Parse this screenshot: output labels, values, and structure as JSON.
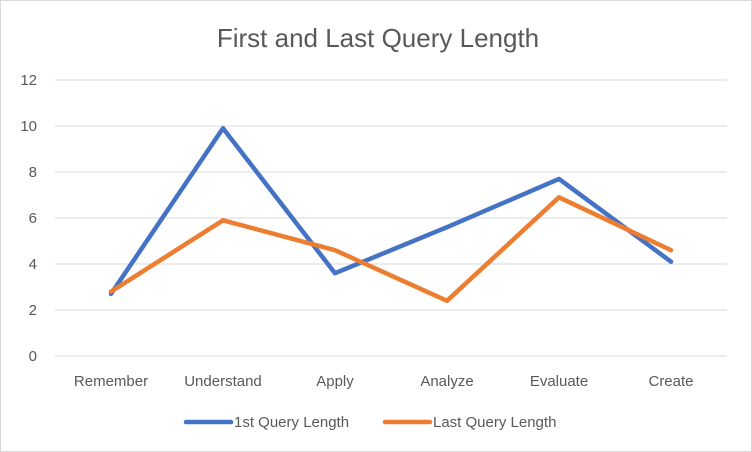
{
  "chart_data": {
    "type": "line",
    "title": "First and Last Query Length",
    "xlabel": "",
    "ylabel": "",
    "categories": [
      "Remember",
      "Understand",
      "Apply",
      "Analyze",
      "Evaluate",
      "Create"
    ],
    "ylim": [
      0,
      12
    ],
    "yticks": [
      0,
      2,
      4,
      6,
      8,
      10,
      12
    ],
    "grid": true,
    "legend_position": "bottom",
    "series": [
      {
        "name": "1st Query Length",
        "color": "#4472C4",
        "values": [
          2.7,
          9.9,
          3.6,
          5.6,
          7.7,
          4.1
        ]
      },
      {
        "name": "Last Query Length",
        "color": "#ED7D31",
        "values": [
          2.8,
          5.9,
          4.6,
          2.4,
          6.9,
          4.6
        ]
      }
    ]
  }
}
